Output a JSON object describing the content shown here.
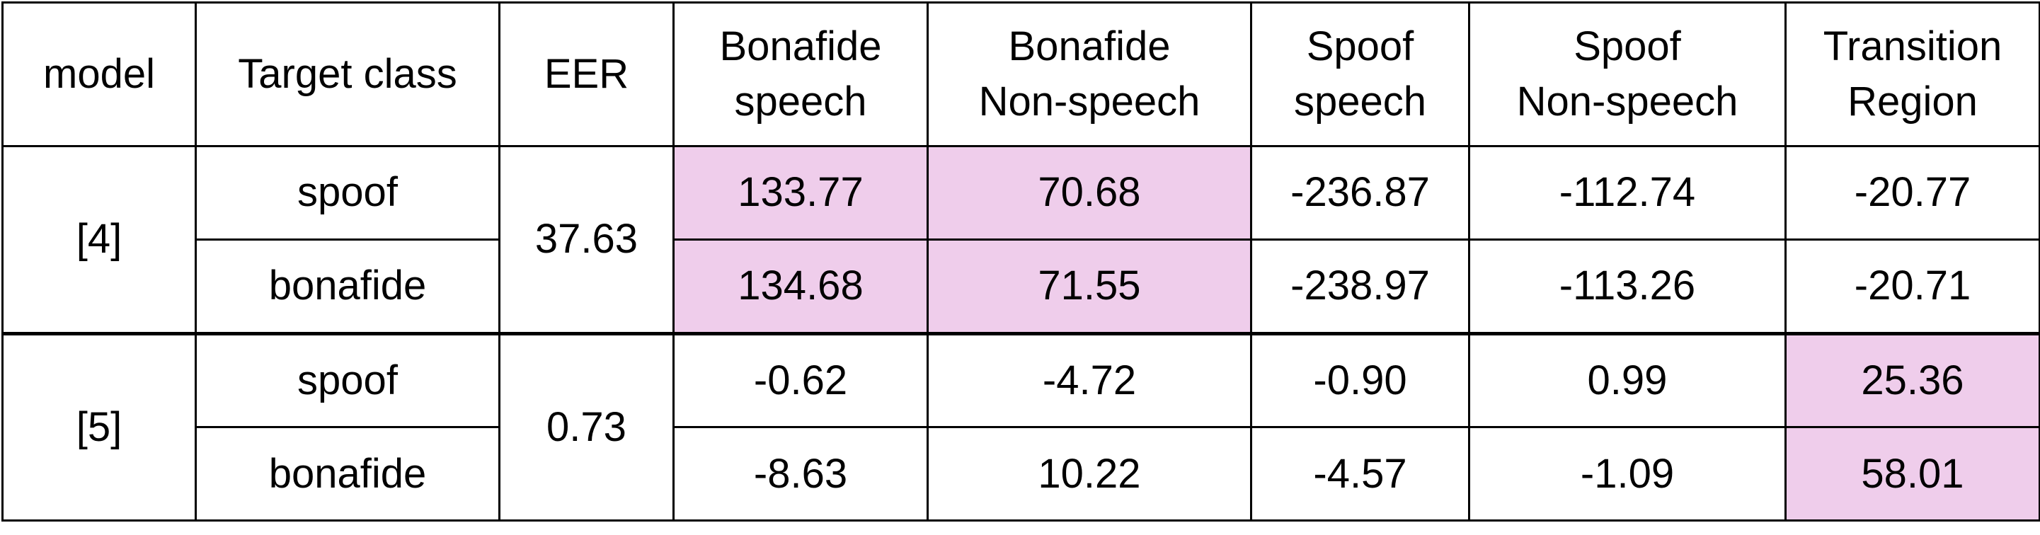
{
  "table": {
    "headers": [
      [
        "model"
      ],
      [
        "Target class"
      ],
      [
        "EER"
      ],
      [
        "Bonafide",
        "speech"
      ],
      [
        "Bonafide",
        "Non-speech"
      ],
      [
        "Spoof",
        "speech"
      ],
      [
        "Spoof",
        "Non-speech"
      ],
      [
        "Transition",
        "Region"
      ]
    ],
    "groups": [
      {
        "model": "[4]",
        "eer": "37.63",
        "rows": [
          {
            "target": "spoof",
            "values": [
              "133.77",
              "70.68",
              "-236.87",
              "-112.74",
              "-20.77"
            ],
            "highlighted": [
              true,
              true,
              false,
              false,
              false
            ]
          },
          {
            "target": "bonafide",
            "values": [
              "134.68",
              "71.55",
              "-238.97",
              "-113.26",
              "-20.71"
            ],
            "highlighted": [
              true,
              true,
              false,
              false,
              false
            ]
          }
        ]
      },
      {
        "model": "[5]",
        "eer": "0.73",
        "rows": [
          {
            "target": "spoof",
            "values": [
              "-0.62",
              "-4.72",
              "-0.90",
              "0.99",
              "25.36"
            ],
            "highlighted": [
              false,
              false,
              false,
              false,
              true
            ]
          },
          {
            "target": "bonafide",
            "values": [
              "-8.63",
              "10.22",
              "-4.57",
              "-1.09",
              "58.01"
            ],
            "highlighted": [
              false,
              false,
              false,
              false,
              true
            ]
          }
        ]
      }
    ],
    "highlight_color": "#efcdeb"
  }
}
